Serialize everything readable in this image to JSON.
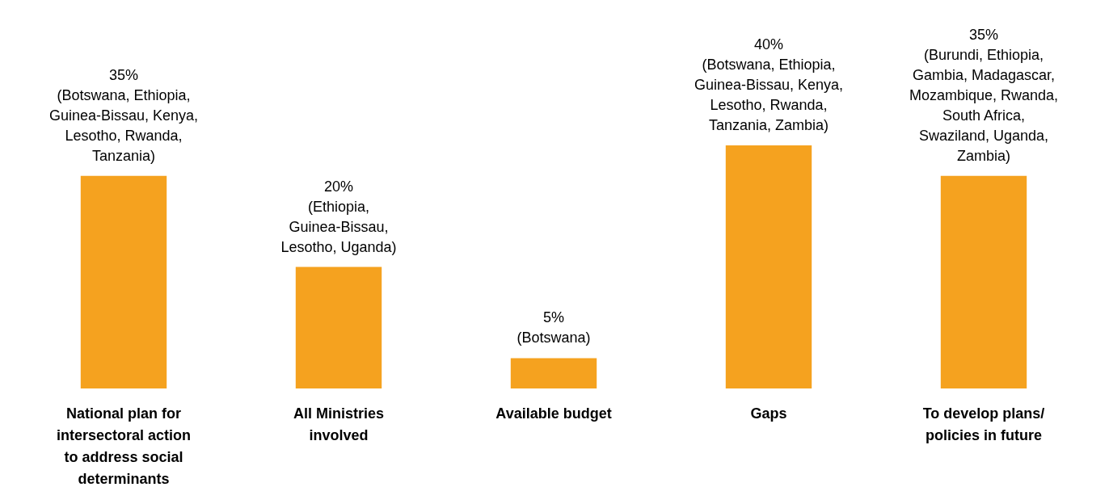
{
  "chart_data": {
    "type": "bar",
    "categories": [
      "National plan for intersectoral action to address social determinants",
      "All Ministries involved",
      "Available budget",
      "Gaps",
      "To develop plans/ policies in future"
    ],
    "series": [
      {
        "color": "#f5a21f",
        "values": [
          35,
          20,
          5,
          40,
          35
        ],
        "value_labels": [
          "35% (Botswana, Ethiopia, Guinea-Bissau, Kenya, Lesotho, Rwanda, Tanzania)",
          "20% (Ethiopia, Guinea-Bissau, Lesotho, Uganda)",
          "5% (Botswana)",
          "40% (Botswana, Ethiopia, Guinea-Bissau, Kenya, Lesotho, Rwanda, Tanzania, Zambia)",
          "35% (Burundi, Ethiopia, Gambia, Madagascar, Mozambique, Rwanda, South Africa, Swaziland, Uganda, Zambia)"
        ]
      }
    ],
    "grid": false
  }
}
